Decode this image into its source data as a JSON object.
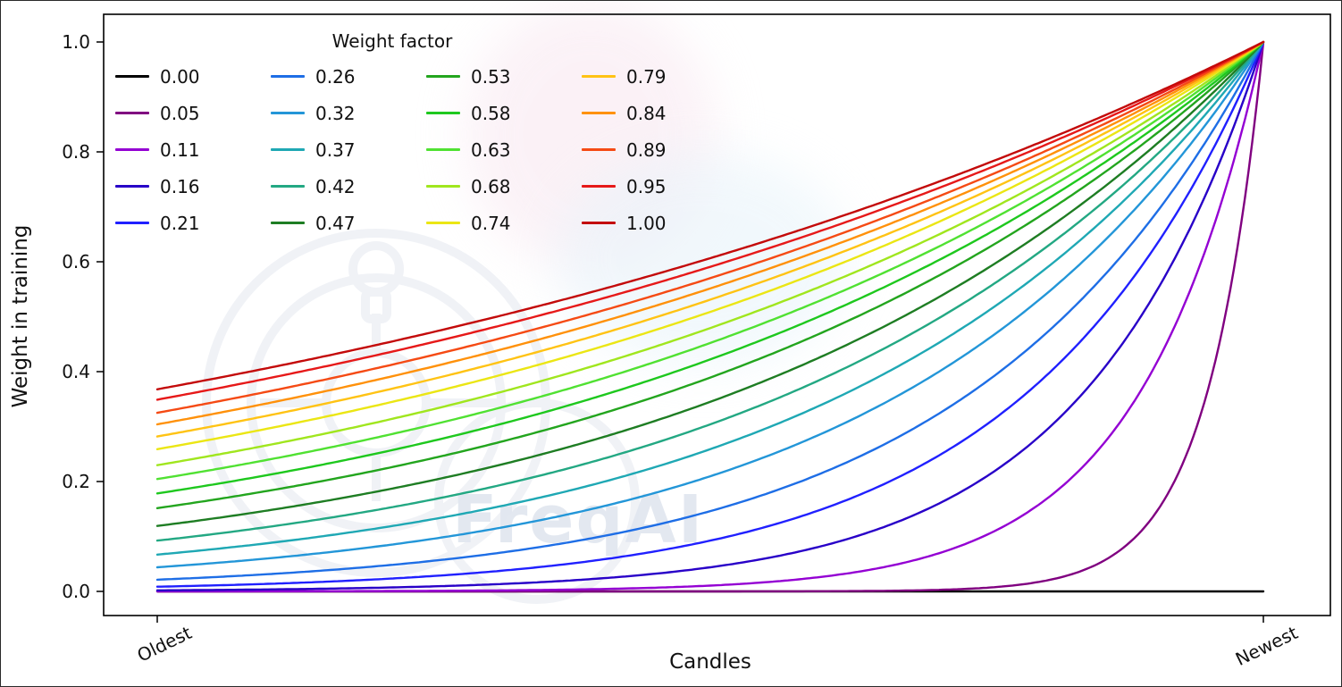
{
  "figure": {
    "background": "#ffffff",
    "watermark_text": "FreqAI"
  },
  "chart_data": {
    "type": "line",
    "title": "",
    "xlabel": "Candles",
    "ylabel": "Weight in training",
    "xlim": [
      0,
      1
    ],
    "ylim": [
      0,
      1
    ],
    "grid": false,
    "x_tick_labels": [
      "Oldest",
      "Newest"
    ],
    "y_tick_labels": [
      "0.0",
      "0.2",
      "0.4",
      "0.6",
      "0.8",
      "1.0"
    ],
    "legend": {
      "title": "Weight factor",
      "position": "upper-left",
      "columns": 4,
      "column_major": true
    },
    "formula": "weight(x) = exp(-(1 - x) / factor) for factor > 0; factor = 0 gives weight 0 (flat line); x normalized 0 = Oldest, 1 = Newest",
    "series": [
      {
        "label": "0.00",
        "factor": 0.0,
        "color": "#000000",
        "y_oldest": 0.0,
        "y_newest": 0.0
      },
      {
        "label": "0.05",
        "factor": 0.05,
        "color": "#800080",
        "y_oldest": 0.0,
        "y_newest": 1.0
      },
      {
        "label": "0.11",
        "factor": 0.11,
        "color": "#9400d3",
        "y_oldest": 0.0001,
        "y_newest": 1.0
      },
      {
        "label": "0.16",
        "factor": 0.16,
        "color": "#2800c8",
        "y_oldest": 0.0019,
        "y_newest": 1.0
      },
      {
        "label": "0.21",
        "factor": 0.21,
        "color": "#2020ff",
        "y_oldest": 0.0086,
        "y_newest": 1.0
      },
      {
        "label": "0.26",
        "factor": 0.26,
        "color": "#1e6ee6",
        "y_oldest": 0.0213,
        "y_newest": 1.0
      },
      {
        "label": "0.32",
        "factor": 0.32,
        "color": "#2396d8",
        "y_oldest": 0.0439,
        "y_newest": 1.0
      },
      {
        "label": "0.37",
        "factor": 0.37,
        "color": "#1fa8b4",
        "y_oldest": 0.067,
        "y_newest": 1.0
      },
      {
        "label": "0.42",
        "factor": 0.42,
        "color": "#23a883",
        "y_oldest": 0.0924,
        "y_newest": 1.0
      },
      {
        "label": "0.47",
        "factor": 0.47,
        "color": "#1e7d23",
        "y_oldest": 0.119,
        "y_newest": 1.0
      },
      {
        "label": "0.53",
        "factor": 0.53,
        "color": "#23a51e",
        "y_oldest": 0.152,
        "y_newest": 1.0
      },
      {
        "label": "0.58",
        "factor": 0.58,
        "color": "#1ec81e",
        "y_oldest": 0.178,
        "y_newest": 1.0
      },
      {
        "label": "0.63",
        "factor": 0.63,
        "color": "#50e132",
        "y_oldest": 0.204,
        "y_newest": 1.0
      },
      {
        "label": "0.68",
        "factor": 0.68,
        "color": "#a0e61e",
        "y_oldest": 0.23,
        "y_newest": 1.0
      },
      {
        "label": "0.74",
        "factor": 0.74,
        "color": "#ebe614",
        "y_oldest": 0.259,
        "y_newest": 1.0
      },
      {
        "label": "0.79",
        "factor": 0.79,
        "color": "#ffc314",
        "y_oldest": 0.282,
        "y_newest": 1.0
      },
      {
        "label": "0.84",
        "factor": 0.84,
        "color": "#ff910a",
        "y_oldest": 0.304,
        "y_newest": 1.0
      },
      {
        "label": "0.89",
        "factor": 0.89,
        "color": "#f54a14",
        "y_oldest": 0.325,
        "y_newest": 1.0
      },
      {
        "label": "0.95",
        "factor": 0.95,
        "color": "#e61919",
        "y_oldest": 0.349,
        "y_newest": 1.0
      },
      {
        "label": "1.00",
        "factor": 1.0,
        "color": "#c30a0a",
        "y_oldest": 0.368,
        "y_newest": 1.0
      }
    ]
  }
}
